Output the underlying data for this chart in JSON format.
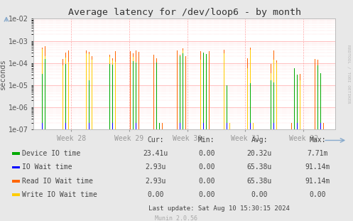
{
  "title": "Average latency for /dev/loop6 - by month",
  "ylabel": "seconds",
  "background_color": "#e8e8e8",
  "plot_bg_color": "#ffffff",
  "grid_color": "#ffaaaa",
  "ylim_min": 1e-07,
  "ylim_max": 0.01,
  "week_labels": [
    "Week 28",
    "Week 29",
    "Week 30",
    "Week 31",
    "Week 32"
  ],
  "series": [
    {
      "name": "Device IO time",
      "color": "#00aa00"
    },
    {
      "name": "IO Wait time",
      "color": "#0000ff"
    },
    {
      "name": "Read IO Wait time",
      "color": "#ff6600"
    },
    {
      "name": "Write IO Wait time",
      "color": "#ffcc00"
    }
  ],
  "legend_table": {
    "headers": [
      "Cur:",
      "Min:",
      "Avg:",
      "Max:"
    ],
    "rows": [
      [
        "Device IO time",
        "23.41u",
        "0.00",
        "20.32u",
        "7.71m"
      ],
      [
        "IO Wait time",
        "2.93u",
        "0.00",
        "65.38u",
        "91.14m"
      ],
      [
        "Read IO Wait time",
        "2.93u",
        "0.00",
        "65.38u",
        "91.14m"
      ],
      [
        "Write IO Wait time",
        "0.00",
        "0.00",
        "0.00",
        "0.00"
      ]
    ]
  },
  "footer": "Last update: Sat Aug 10 15:30:15 2024",
  "munin_version": "Munin 2.0.56",
  "right_label": "RRDTOOL / TOBI OETIKER",
  "n_weeks": 5,
  "pts_per_week": 20
}
